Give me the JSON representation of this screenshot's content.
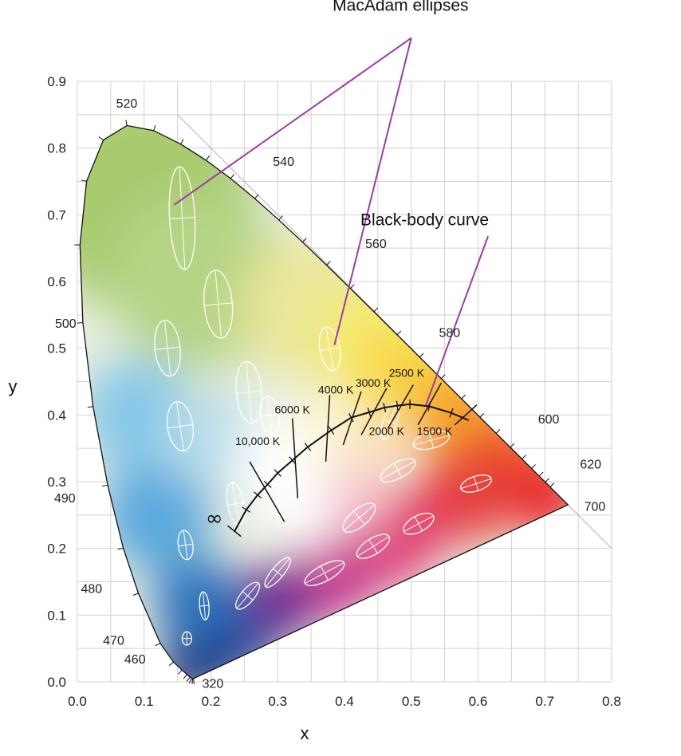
{
  "chart_data": {
    "type": "scatter",
    "xlabel": "x",
    "ylabel": "y",
    "xlim": [
      0.0,
      0.8
    ],
    "ylim": [
      0.0,
      0.9
    ],
    "x_ticks": [
      "0.0",
      "0.1",
      "0.2",
      "0.3",
      "0.4",
      "0.5",
      "0.6",
      "0.7",
      "0.8"
    ],
    "y_ticks": [
      "0.0",
      "0.1",
      "0.2",
      "0.3",
      "0.4",
      "0.5",
      "0.6",
      "0.7",
      "0.8",
      "0.9"
    ],
    "grid": true,
    "locus": [
      [
        0.1741,
        0.005
      ],
      [
        0.1738,
        0.0049
      ],
      [
        0.1726,
        0.0048
      ],
      [
        0.1714,
        0.0051
      ],
      [
        0.1689,
        0.0069
      ],
      [
        0.1644,
        0.0109
      ],
      [
        0.1566,
        0.0177
      ],
      [
        0.144,
        0.0297
      ],
      [
        0.1241,
        0.0578
      ],
      [
        0.0913,
        0.1327
      ],
      [
        0.0687,
        0.2007
      ],
      [
        0.0454,
        0.295
      ],
      [
        0.0235,
        0.4127
      ],
      [
        0.0082,
        0.5384
      ],
      [
        0.0039,
        0.6548
      ],
      [
        0.0139,
        0.7502
      ],
      [
        0.0389,
        0.812
      ],
      [
        0.0743,
        0.8338
      ],
      [
        0.1142,
        0.8262
      ],
      [
        0.1547,
        0.8059
      ],
      [
        0.1929,
        0.7816
      ],
      [
        0.2296,
        0.7543
      ],
      [
        0.2658,
        0.7243
      ],
      [
        0.3016,
        0.6923
      ],
      [
        0.3373,
        0.6589
      ],
      [
        0.3731,
        0.6245
      ],
      [
        0.4087,
        0.5896
      ],
      [
        0.4441,
        0.5547
      ],
      [
        0.4788,
        0.5202
      ],
      [
        0.5125,
        0.4866
      ],
      [
        0.5448,
        0.4544
      ],
      [
        0.5752,
        0.4242
      ],
      [
        0.6029,
        0.3965
      ],
      [
        0.627,
        0.3725
      ],
      [
        0.6482,
        0.3514
      ],
      [
        0.6658,
        0.334
      ],
      [
        0.6801,
        0.3197
      ],
      [
        0.6915,
        0.3083
      ],
      [
        0.7006,
        0.2993
      ],
      [
        0.7079,
        0.292
      ],
      [
        0.714,
        0.2859
      ],
      [
        0.7347,
        0.2653
      ]
    ],
    "wavelength_labels": [
      {
        "text": "320",
        "x": 0.175,
        "y": 0.003
      },
      {
        "text": "460",
        "x": 0.144,
        "y": 0.03
      },
      {
        "text": "470",
        "x": 0.124,
        "y": 0.058
      },
      {
        "text": "480",
        "x": 0.091,
        "y": 0.133
      },
      {
        "text": "490",
        "x": 0.045,
        "y": 0.295
      },
      {
        "text": "500",
        "x": 0.008,
        "y": 0.538
      },
      {
        "text": "520",
        "x": 0.074,
        "y": 0.834
      },
      {
        "text": "540",
        "x": 0.23,
        "y": 0.754
      },
      {
        "text": "560",
        "x": 0.373,
        "y": 0.624
      },
      {
        "text": "580",
        "x": 0.512,
        "y": 0.487
      },
      {
        "text": "600",
        "x": 0.627,
        "y": 0.373
      },
      {
        "text": "620",
        "x": 0.691,
        "y": 0.308
      },
      {
        "text": "700",
        "x": 0.735,
        "y": 0.265
      }
    ],
    "blackbody_curve": [
      [
        0.235,
        0.225
      ],
      [
        0.253,
        0.258
      ],
      [
        0.27,
        0.28
      ],
      [
        0.285,
        0.296
      ],
      [
        0.3,
        0.313
      ],
      [
        0.322,
        0.332
      ],
      [
        0.345,
        0.352
      ],
      [
        0.38,
        0.377
      ],
      [
        0.41,
        0.396
      ],
      [
        0.437,
        0.404
      ],
      [
        0.46,
        0.411
      ],
      [
        0.479,
        0.414
      ],
      [
        0.498,
        0.416
      ],
      [
        0.527,
        0.413
      ],
      [
        0.56,
        0.403
      ],
      [
        0.586,
        0.392
      ]
    ],
    "isotherm_labels": [
      {
        "text": "10,000 K",
        "x": 0.27,
        "y": 0.355
      },
      {
        "text": "6000 K",
        "x": 0.322,
        "y": 0.402
      },
      {
        "text": "4000 K",
        "x": 0.387,
        "y": 0.432
      },
      {
        "text": "3000 K",
        "x": 0.443,
        "y": 0.442
      },
      {
        "text": "2500 K",
        "x": 0.493,
        "y": 0.457
      },
      {
        "text": "2000 K",
        "x": 0.463,
        "y": 0.37
      },
      {
        "text": "1500 K",
        "x": 0.535,
        "y": 0.37
      }
    ],
    "ellipses": [
      {
        "cx": 0.157,
        "cy": 0.695,
        "rx": 0.019,
        "ry": 0.077,
        "rot": -3
      },
      {
        "cx": 0.211,
        "cy": 0.566,
        "rx": 0.021,
        "ry": 0.051,
        "rot": -5
      },
      {
        "cx": 0.135,
        "cy": 0.5,
        "rx": 0.019,
        "ry": 0.042,
        "rot": -6
      },
      {
        "cx": 0.257,
        "cy": 0.434,
        "rx": 0.019,
        "ry": 0.046,
        "rot": -5
      },
      {
        "cx": 0.378,
        "cy": 0.499,
        "rx": 0.015,
        "ry": 0.033,
        "rot": -10
      },
      {
        "cx": 0.154,
        "cy": 0.383,
        "rx": 0.019,
        "ry": 0.037,
        "rot": -8
      },
      {
        "cx": 0.288,
        "cy": 0.4,
        "rx": 0.014,
        "ry": 0.028,
        "rot": -8
      },
      {
        "cx": 0.237,
        "cy": 0.267,
        "rx": 0.012,
        "ry": 0.032,
        "rot": -10
      },
      {
        "cx": 0.162,
        "cy": 0.205,
        "rx": 0.011,
        "ry": 0.022,
        "rot": -8
      },
      {
        "cx": 0.19,
        "cy": 0.114,
        "rx": 0.007,
        "ry": 0.021,
        "rot": -5
      },
      {
        "cx": 0.164,
        "cy": 0.065,
        "rx": 0.007,
        "ry": 0.01,
        "rot": 0
      },
      {
        "cx": 0.255,
        "cy": 0.129,
        "rx": 0.01,
        "ry": 0.025,
        "rot": 40
      },
      {
        "cx": 0.3,
        "cy": 0.164,
        "rx": 0.009,
        "ry": 0.028,
        "rot": 40
      },
      {
        "cx": 0.37,
        "cy": 0.163,
        "rx": 0.012,
        "ry": 0.033,
        "rot": 62
      },
      {
        "cx": 0.422,
        "cy": 0.246,
        "rx": 0.013,
        "ry": 0.03,
        "rot": 50
      },
      {
        "cx": 0.443,
        "cy": 0.203,
        "rx": 0.012,
        "ry": 0.028,
        "rot": 58
      },
      {
        "cx": 0.48,
        "cy": 0.317,
        "rx": 0.012,
        "ry": 0.029,
        "rot": 62
      },
      {
        "cx": 0.511,
        "cy": 0.237,
        "rx": 0.012,
        "ry": 0.025,
        "rot": 62
      },
      {
        "cx": 0.53,
        "cy": 0.362,
        "rx": 0.012,
        "ry": 0.028,
        "rot": 75
      },
      {
        "cx": 0.597,
        "cy": 0.297,
        "rx": 0.011,
        "ry": 0.024,
        "rot": 72
      },
      {
        "cx": 0.468,
        "cy": 0.39,
        "rx": 0.01,
        "ry": 0.028,
        "rot": 20
      }
    ],
    "annotations": [
      {
        "text": "MacAdam ellipses",
        "x": 0.484,
        "y": 1.006
      },
      {
        "text": "Black-body curve",
        "x": 0.52,
        "y": 0.684
      }
    ],
    "infinity_symbol": "∞"
  },
  "colors": {
    "leader_line": "#9b3da2",
    "grid": "#d0d0d0",
    "locus_stroke": "#111111",
    "ellipse_stroke": "#ffffff"
  }
}
